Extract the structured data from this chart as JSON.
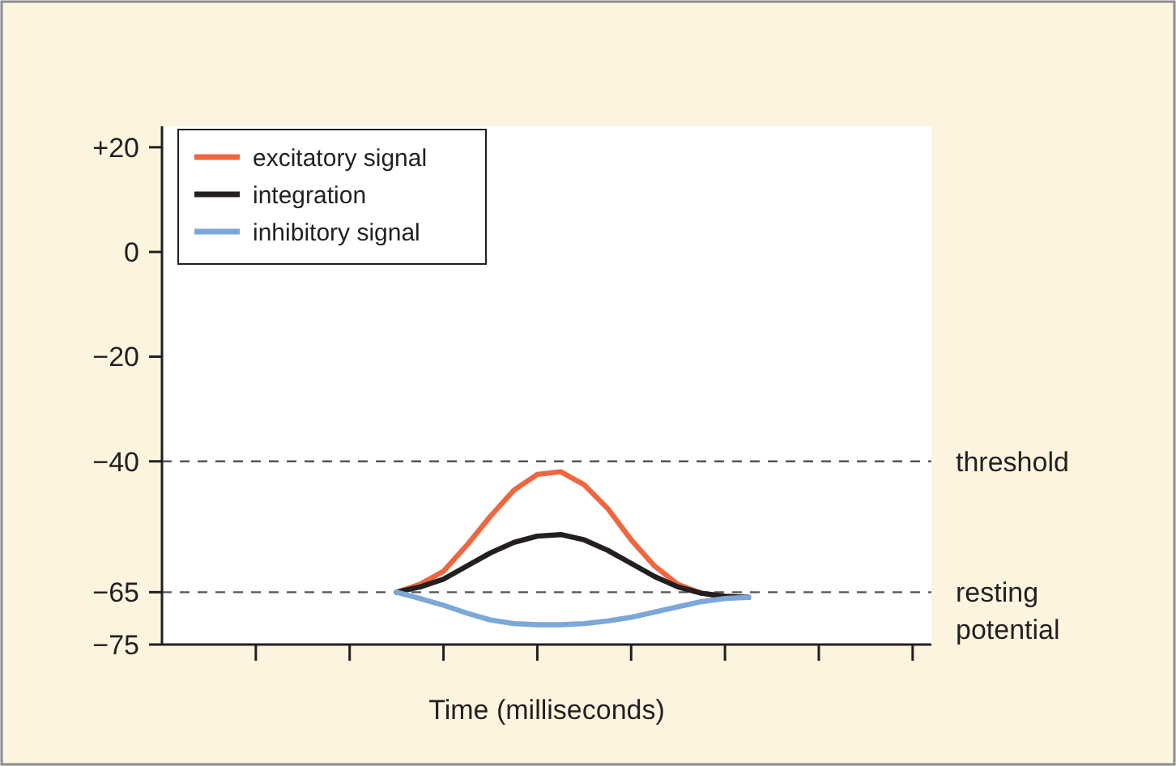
{
  "chart_data": {
    "type": "line",
    "xlabel": "Time (milliseconds)",
    "categories": [
      null,
      null,
      null,
      null,
      null,
      null,
      null,
      null,
      null,
      null,
      null,
      null,
      null,
      null,
      null,
      null,
      null,
      null,
      null,
      null,
      null,
      null,
      null,
      null,
      null,
      null,
      null,
      null,
      null,
      null,
      null,
      null,
      null
    ],
    "ylim": [
      -75,
      24
    ],
    "yticks": [
      {
        "value": 20,
        "label": "+20"
      },
      0,
      {
        "value": -20,
        "label": "−20"
      },
      {
        "value": -40,
        "label": "−40"
      },
      {
        "value": -65,
        "label": "−65"
      },
      {
        "value": -75,
        "label": "−75"
      }
    ],
    "series": [
      {
        "name": "excitatory signal",
        "color": "#f0663f",
        "values": [
          null,
          null,
          null,
          null,
          null,
          null,
          null,
          null,
          null,
          null,
          -65,
          -63.5,
          -61,
          -56,
          -50.5,
          -45.5,
          -42.5,
          -42,
          -44.5,
          -49,
          -55,
          -60,
          -63.5,
          -65.2,
          -65.8,
          -66,
          null,
          null,
          null,
          null,
          null,
          null,
          null
        ]
      },
      {
        "name": "integration",
        "color": "#231f20",
        "values": [
          null,
          null,
          null,
          null,
          null,
          null,
          null,
          null,
          null,
          null,
          -65,
          -64,
          -62.5,
          -60,
          -57.5,
          -55.5,
          -54.3,
          -54,
          -55,
          -57,
          -59.5,
          -62,
          -64,
          -65.2,
          -65.8,
          -66,
          null,
          null,
          null,
          null,
          null,
          null,
          null
        ]
      },
      {
        "name": "inhibitory signal",
        "color": "#7ba7d9",
        "values": [
          null,
          null,
          null,
          null,
          null,
          null,
          null,
          null,
          null,
          null,
          -65,
          -66.2,
          -67.5,
          -69,
          -70.3,
          -71,
          -71.2,
          -71.2,
          -71,
          -70.5,
          -69.8,
          -68.8,
          -67.8,
          -66.8,
          -66.2,
          -66,
          null,
          null,
          null,
          null,
          null,
          null,
          null
        ]
      }
    ],
    "ref_lines": [
      {
        "axis": "y",
        "value": -40,
        "label": "threshold",
        "line_style": "dashed"
      },
      {
        "axis": "y",
        "value": -65,
        "label": "resting potential",
        "line_style": "dashed"
      }
    ],
    "legend": "top left",
    "grid": false,
    "marker": "none",
    "line_style": "solid"
  }
}
